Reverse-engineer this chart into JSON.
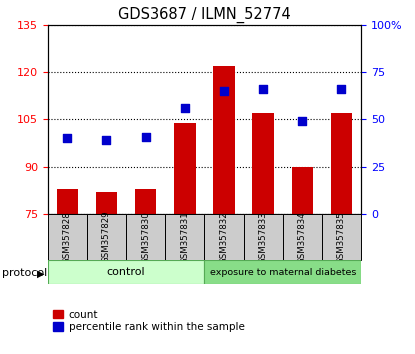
{
  "title": "GDS3687 / ILMN_52774",
  "samples": [
    "GSM357828",
    "GSM357829",
    "GSM357830",
    "GSM357831",
    "GSM357832",
    "GSM357833",
    "GSM357834",
    "GSM357835"
  ],
  "bar_values": [
    83,
    82,
    83,
    104,
    122,
    107,
    90,
    107
  ],
  "dot_values": [
    40,
    39,
    41,
    56,
    65,
    66,
    49,
    66
  ],
  "ylim_left": [
    75,
    135
  ],
  "ylim_right": [
    0,
    100
  ],
  "yticks_left": [
    75,
    90,
    105,
    120,
    135
  ],
  "yticks_right": [
    0,
    25,
    50,
    75,
    100
  ],
  "bar_color": "#cc0000",
  "dot_color": "#0000cc",
  "group_control": {
    "label": "control",
    "indices": [
      0,
      1,
      2,
      3
    ],
    "color": "#ccffcc"
  },
  "group_diabetes": {
    "label": "exposure to maternal diabetes",
    "indices": [
      4,
      5,
      6,
      7
    ],
    "color": "#88dd88"
  },
  "protocol_label": "protocol",
  "legend_bar_label": "count",
  "legend_dot_label": "percentile rank within the sample",
  "tick_label_fontsize": 8,
  "title_fontsize": 10.5,
  "right_ytick_labels": [
    "0",
    "25",
    "50",
    "75",
    "100%"
  ]
}
